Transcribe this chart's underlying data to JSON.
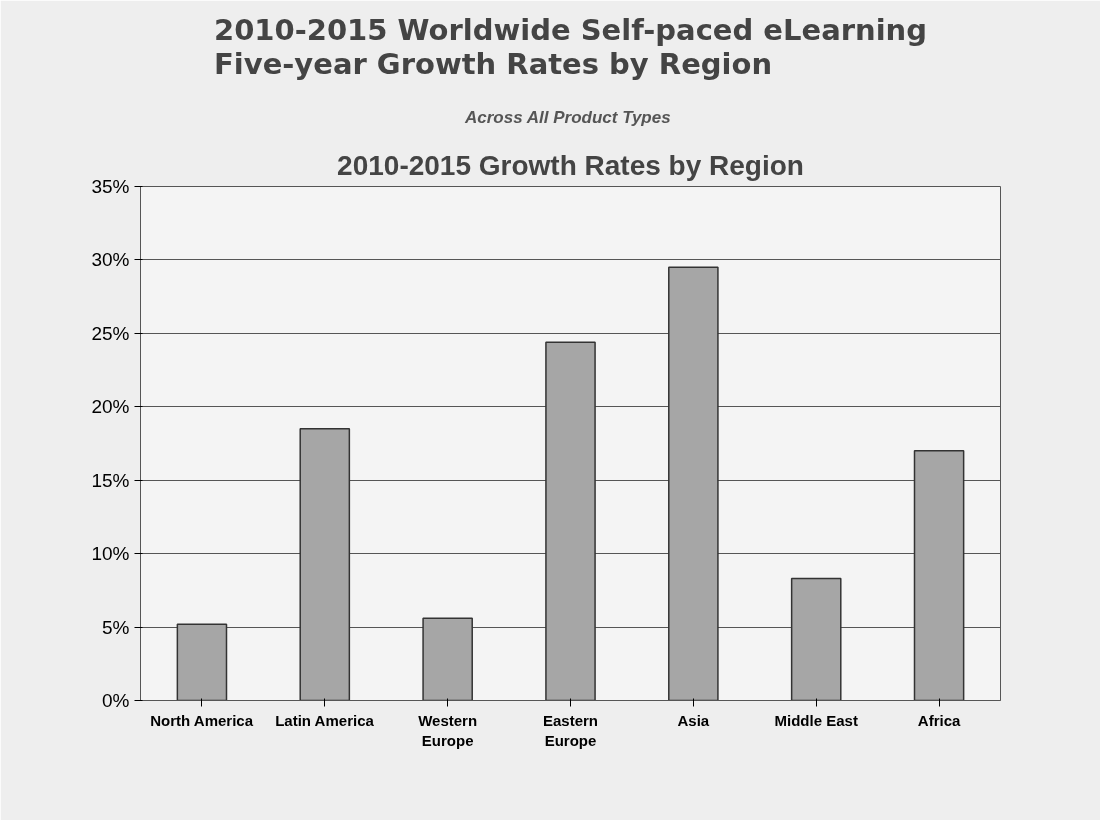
{
  "chart_data": {
    "type": "bar",
    "title": "2010-2015 Worldwide Self-paced eLearning\nFive-year Growth Rates by Region",
    "subtitle": "Across  All Product Types",
    "annotations": [
      "2010-2015 Growth Rates by Region"
    ],
    "categories": [
      "North America",
      "Latin America",
      "Western\nEurope",
      "Eastern\nEurope",
      "Asia",
      "Middle East",
      "Africa"
    ],
    "values": [
      5.2,
      18.5,
      5.6,
      24.4,
      29.5,
      8.3,
      17.0
    ],
    "color": "#a6a6a6",
    "ylim": [
      0,
      35
    ],
    "yticks": [
      {
        "value": 0,
        "label": "0%"
      },
      {
        "value": 5,
        "label": "5%"
      },
      {
        "value": 10,
        "label": "10%"
      },
      {
        "value": 15,
        "label": "15%"
      },
      {
        "value": 20,
        "label": "20%"
      },
      {
        "value": 25,
        "label": "25%"
      },
      {
        "value": 30,
        "label": "30%"
      },
      {
        "value": 35,
        "label": "35%"
      }
    ],
    "grid": "y"
  }
}
